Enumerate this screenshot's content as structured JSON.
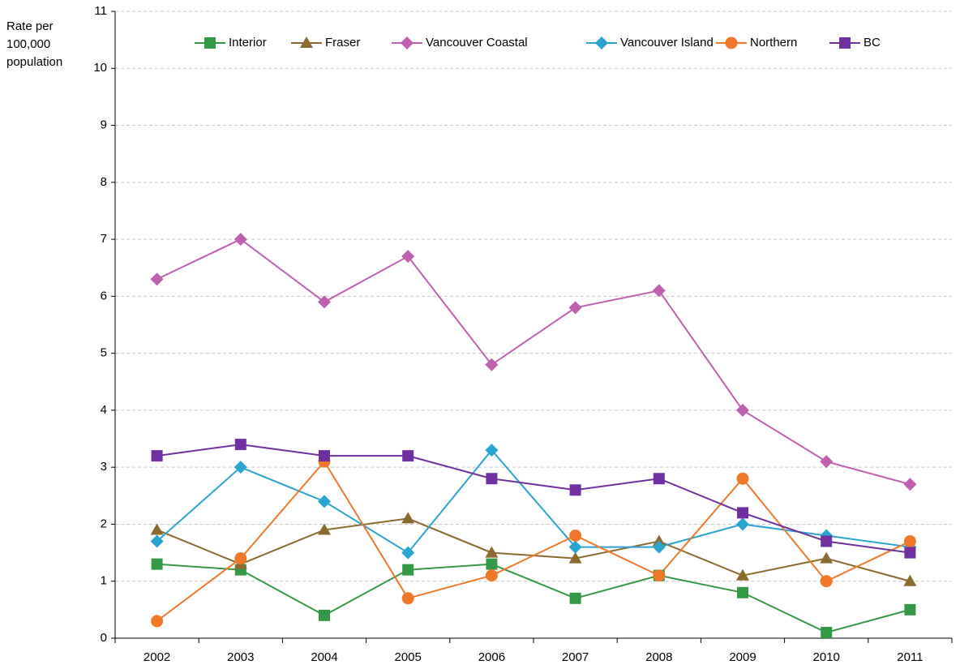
{
  "chart_data": {
    "type": "line",
    "y_label": [
      "Rate per",
      "100,000",
      "population"
    ],
    "categories": [
      "2002",
      "2003",
      "2004",
      "2005",
      "2006",
      "2007",
      "2008",
      "2009",
      "2010",
      "2011"
    ],
    "series": [
      {
        "name": "Interior",
        "color": "#339944",
        "marker": "square",
        "values": [
          1.3,
          1.2,
          0.4,
          1.2,
          1.3,
          0.7,
          1.1,
          0.8,
          0.1,
          0.5
        ]
      },
      {
        "name": "Fraser",
        "color": "#8b6a2e",
        "marker": "triangle",
        "values": [
          1.9,
          1.3,
          1.9,
          2.1,
          1.5,
          1.4,
          1.7,
          1.1,
          1.4,
          1.0
        ]
      },
      {
        "name": "Vancouver Coastal",
        "color": "#c060b0",
        "marker": "diamond",
        "values": [
          6.3,
          7.0,
          5.9,
          6.7,
          4.8,
          5.8,
          6.1,
          4.0,
          3.1,
          2.7
        ]
      },
      {
        "name": "Vancouver Island",
        "color": "#2aa5d0",
        "marker": "diamond",
        "values": [
          1.7,
          3.0,
          2.4,
          1.5,
          3.3,
          1.6,
          1.6,
          2.0,
          1.8,
          1.6
        ]
      },
      {
        "name": "Northern",
        "color": "#f07828",
        "marker": "circle",
        "values": [
          0.3,
          1.4,
          3.1,
          0.7,
          1.1,
          1.8,
          1.1,
          2.8,
          1.0,
          1.7
        ]
      },
      {
        "name": "BC",
        "color": "#7030a0",
        "marker": "square",
        "values": [
          3.2,
          3.4,
          3.2,
          3.2,
          2.8,
          2.6,
          2.8,
          2.2,
          1.7,
          1.5
        ]
      }
    ],
    "ylim": [
      0,
      11
    ],
    "yticks": [
      0,
      1,
      2,
      3,
      4,
      5,
      6,
      7,
      8,
      9,
      10,
      11
    ],
    "grid": true,
    "legend": "top"
  }
}
